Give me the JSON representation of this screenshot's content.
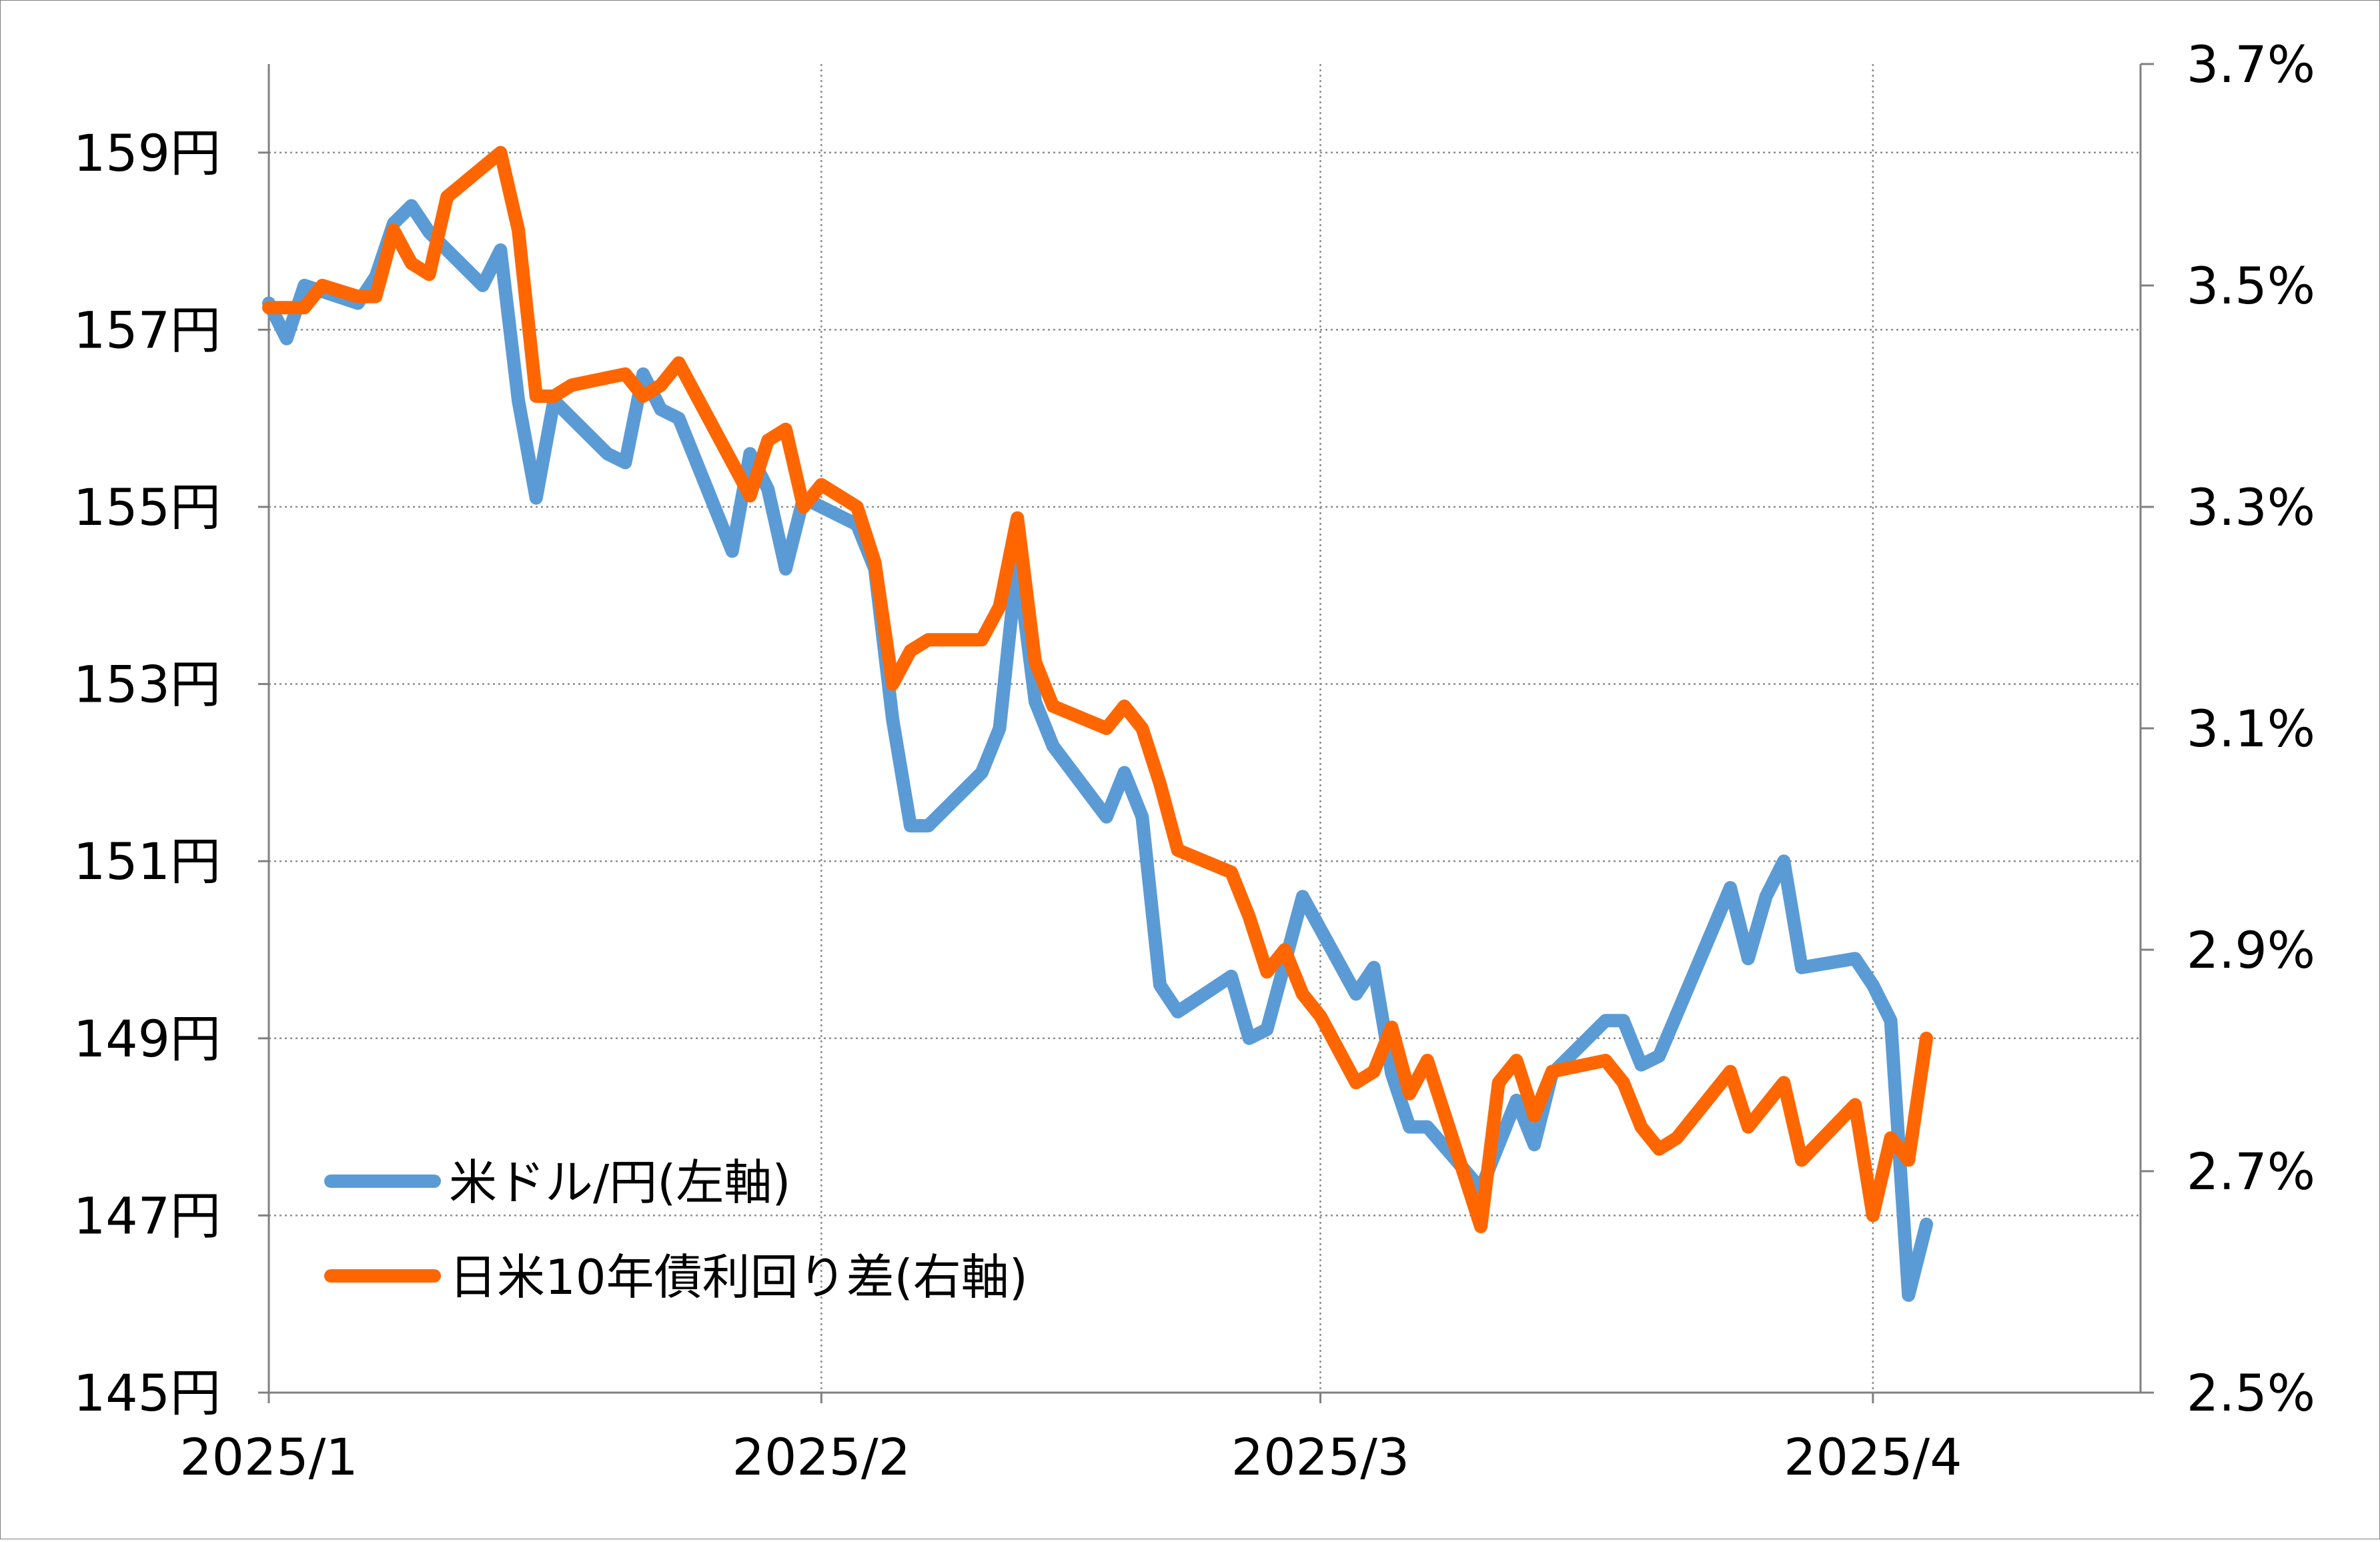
{
  "chart_data": {
    "type": "line",
    "title": "",
    "x_axis": {
      "ticks": [
        "2025/1",
        "2025/2",
        "2025/3",
        "2025/4"
      ],
      "tick_days": [
        0,
        31,
        59,
        90
      ],
      "range_days": [
        0,
        105
      ]
    },
    "y_left": {
      "min": 145,
      "max": 160,
      "unit": "円",
      "ticks": [
        145,
        147,
        149,
        151,
        153,
        155,
        157,
        159
      ],
      "tick_labels": [
        "145円",
        "147円",
        "149円",
        "151円",
        "153円",
        "155円",
        "157円",
        "159円"
      ]
    },
    "y_right": {
      "min": 2.5,
      "max": 3.7,
      "unit": "%",
      "ticks": [
        2.5,
        2.7,
        2.9,
        3.1,
        3.3,
        3.5,
        3.7
      ],
      "tick_labels": [
        "2.5%",
        "2.7%",
        "2.9%",
        "3.1%",
        "3.3%",
        "3.5%",
        "3.7%"
      ]
    },
    "grid": true,
    "legend_position": "bottom-left",
    "series": [
      {
        "name": "米ドル/円(左軸)",
        "axis": "left",
        "color": "#5B9BD5",
        "points": [
          {
            "x": "2025-01-01",
            "y": 157.3
          },
          {
            "x": "2025-01-02",
            "y": 156.9
          },
          {
            "x": "2025-01-03",
            "y": 157.5
          },
          {
            "x": "2025-01-06",
            "y": 157.3
          },
          {
            "x": "2025-01-07",
            "y": 157.6
          },
          {
            "x": "2025-01-08",
            "y": 158.2
          },
          {
            "x": "2025-01-09",
            "y": 158.4
          },
          {
            "x": "2025-01-10",
            "y": 158.1
          },
          {
            "x": "2025-01-13",
            "y": 157.5
          },
          {
            "x": "2025-01-14",
            "y": 157.9
          },
          {
            "x": "2025-01-15",
            "y": 156.2
          },
          {
            "x": "2025-01-16",
            "y": 155.1
          },
          {
            "x": "2025-01-17",
            "y": 156.2
          },
          {
            "x": "2025-01-20",
            "y": 155.6
          },
          {
            "x": "2025-01-21",
            "y": 155.5
          },
          {
            "x": "2025-01-22",
            "y": 156.5
          },
          {
            "x": "2025-01-23",
            "y": 156.1
          },
          {
            "x": "2025-01-24",
            "y": 156.0
          },
          {
            "x": "2025-01-27",
            "y": 154.5
          },
          {
            "x": "2025-01-28",
            "y": 155.6
          },
          {
            "x": "2025-01-29",
            "y": 155.2
          },
          {
            "x": "2025-01-30",
            "y": 154.3
          },
          {
            "x": "2025-01-31",
            "y": 155.1
          },
          {
            "x": "2025-02-03",
            "y": 154.8
          },
          {
            "x": "2025-02-04",
            "y": 154.3
          },
          {
            "x": "2025-02-05",
            "y": 152.6
          },
          {
            "x": "2025-02-06",
            "y": 151.4
          },
          {
            "x": "2025-02-07",
            "y": 151.4
          },
          {
            "x": "2025-02-10",
            "y": 152.0
          },
          {
            "x": "2025-02-11",
            "y": 152.5
          },
          {
            "x": "2025-02-12",
            "y": 154.4
          },
          {
            "x": "2025-02-13",
            "y": 152.8
          },
          {
            "x": "2025-02-14",
            "y": 152.3
          },
          {
            "x": "2025-02-17",
            "y": 151.5
          },
          {
            "x": "2025-02-18",
            "y": 152.0
          },
          {
            "x": "2025-02-19",
            "y": 151.5
          },
          {
            "x": "2025-02-20",
            "y": 149.6
          },
          {
            "x": "2025-02-21",
            "y": 149.3
          },
          {
            "x": "2025-02-24",
            "y": 149.7
          },
          {
            "x": "2025-02-25",
            "y": 149.0
          },
          {
            "x": "2025-02-26",
            "y": 149.1
          },
          {
            "x": "2025-02-28",
            "y": 150.6
          },
          {
            "x": "2025-03-03",
            "y": 149.5
          },
          {
            "x": "2025-03-04",
            "y": 149.8
          },
          {
            "x": "2025-03-05",
            "y": 148.6
          },
          {
            "x": "2025-03-06",
            "y": 148.0
          },
          {
            "x": "2025-03-07",
            "y": 148.0
          },
          {
            "x": "2025-03-10",
            "y": 147.3
          },
          {
            "x": "2025-03-11",
            "y": 147.8
          },
          {
            "x": "2025-03-12",
            "y": 148.3
          },
          {
            "x": "2025-03-13",
            "y": 147.8
          },
          {
            "x": "2025-03-14",
            "y": 148.6
          },
          {
            "x": "2025-03-17",
            "y": 149.2
          },
          {
            "x": "2025-03-18",
            "y": 149.2
          },
          {
            "x": "2025-03-19",
            "y": 148.7
          },
          {
            "x": "2025-03-20",
            "y": 148.8
          },
          {
            "x": "2025-03-24",
            "y": 150.7
          },
          {
            "x": "2025-03-25",
            "y": 149.9
          },
          {
            "x": "2025-03-26",
            "y": 150.6
          },
          {
            "x": "2025-03-27",
            "y": 151.0
          },
          {
            "x": "2025-03-28",
            "y": 149.8
          },
          {
            "x": "2025-03-31",
            "y": 149.9
          },
          {
            "x": "2025-04-01",
            "y": 149.6
          },
          {
            "x": "2025-04-02",
            "y": 149.2
          },
          {
            "x": "2025-04-03",
            "y": 146.1
          },
          {
            "x": "2025-04-04",
            "y": 146.9
          }
        ]
      },
      {
        "name": "日米10年債利回り差(右軸)",
        "axis": "right",
        "color": "#FF6600",
        "points": [
          {
            "x": "2025-01-01",
            "y": 3.48
          },
          {
            "x": "2025-01-02",
            "y": 3.48
          },
          {
            "x": "2025-01-03",
            "y": 3.48
          },
          {
            "x": "2025-01-04",
            "y": 3.5
          },
          {
            "x": "2025-01-06",
            "y": 3.49
          },
          {
            "x": "2025-01-07",
            "y": 3.49
          },
          {
            "x": "2025-01-08",
            "y": 3.55
          },
          {
            "x": "2025-01-09",
            "y": 3.52
          },
          {
            "x": "2025-01-10",
            "y": 3.51
          },
          {
            "x": "2025-01-11",
            "y": 3.58
          },
          {
            "x": "2025-01-14",
            "y": 3.62
          },
          {
            "x": "2025-01-15",
            "y": 3.55
          },
          {
            "x": "2025-01-16",
            "y": 3.4
          },
          {
            "x": "2025-01-17",
            "y": 3.4
          },
          {
            "x": "2025-01-18",
            "y": 3.41
          },
          {
            "x": "2025-01-21",
            "y": 3.42
          },
          {
            "x": "2025-01-22",
            "y": 3.4
          },
          {
            "x": "2025-01-23",
            "y": 3.41
          },
          {
            "x": "2025-01-24",
            "y": 3.43
          },
          {
            "x": "2025-01-25",
            "y": 3.4
          },
          {
            "x": "2025-01-28",
            "y": 3.31
          },
          {
            "x": "2025-01-29",
            "y": 3.36
          },
          {
            "x": "2025-01-30",
            "y": 3.37
          },
          {
            "x": "2025-01-31",
            "y": 3.3
          },
          {
            "x": "2025-02-01",
            "y": 3.32
          },
          {
            "x": "2025-02-03",
            "y": 3.3
          },
          {
            "x": "2025-02-04",
            "y": 3.25
          },
          {
            "x": "2025-02-05",
            "y": 3.14
          },
          {
            "x": "2025-02-06",
            "y": 3.17
          },
          {
            "x": "2025-02-07",
            "y": 3.18
          },
          {
            "x": "2025-02-10",
            "y": 3.18
          },
          {
            "x": "2025-02-11",
            "y": 3.21
          },
          {
            "x": "2025-02-12",
            "y": 3.29
          },
          {
            "x": "2025-02-13",
            "y": 3.16
          },
          {
            "x": "2025-02-14",
            "y": 3.12
          },
          {
            "x": "2025-02-17",
            "y": 3.1
          },
          {
            "x": "2025-02-18",
            "y": 3.12
          },
          {
            "x": "2025-02-19",
            "y": 3.1
          },
          {
            "x": "2025-02-20",
            "y": 3.05
          },
          {
            "x": "2025-02-21",
            "y": 2.99
          },
          {
            "x": "2025-02-24",
            "y": 2.97
          },
          {
            "x": "2025-02-25",
            "y": 2.93
          },
          {
            "x": "2025-02-26",
            "y": 2.88
          },
          {
            "x": "2025-02-27",
            "y": 2.9
          },
          {
            "x": "2025-02-28",
            "y": 2.86
          },
          {
            "x": "2025-03-01",
            "y": 2.84
          },
          {
            "x": "2025-03-03",
            "y": 2.78
          },
          {
            "x": "2025-03-04",
            "y": 2.79
          },
          {
            "x": "2025-03-05",
            "y": 2.83
          },
          {
            "x": "2025-03-06",
            "y": 2.77
          },
          {
            "x": "2025-03-07",
            "y": 2.8
          },
          {
            "x": "2025-03-10",
            "y": 2.65
          },
          {
            "x": "2025-03-11",
            "y": 2.78
          },
          {
            "x": "2025-03-12",
            "y": 2.8
          },
          {
            "x": "2025-03-13",
            "y": 2.75
          },
          {
            "x": "2025-03-14",
            "y": 2.79
          },
          {
            "x": "2025-03-17",
            "y": 2.8
          },
          {
            "x": "2025-03-18",
            "y": 2.78
          },
          {
            "x": "2025-03-19",
            "y": 2.74
          },
          {
            "x": "2025-03-20",
            "y": 2.72
          },
          {
            "x": "2025-03-21",
            "y": 2.73
          },
          {
            "x": "2025-03-24",
            "y": 2.79
          },
          {
            "x": "2025-03-25",
            "y": 2.74
          },
          {
            "x": "2025-03-26",
            "y": 2.76
          },
          {
            "x": "2025-03-27",
            "y": 2.78
          },
          {
            "x": "2025-03-28",
            "y": 2.71
          },
          {
            "x": "2025-03-31",
            "y": 2.76
          },
          {
            "x": "2025-04-01",
            "y": 2.66
          },
          {
            "x": "2025-04-02",
            "y": 2.73
          },
          {
            "x": "2025-04-03",
            "y": 2.71
          },
          {
            "x": "2025-04-04",
            "y": 2.82
          }
        ]
      }
    ]
  }
}
